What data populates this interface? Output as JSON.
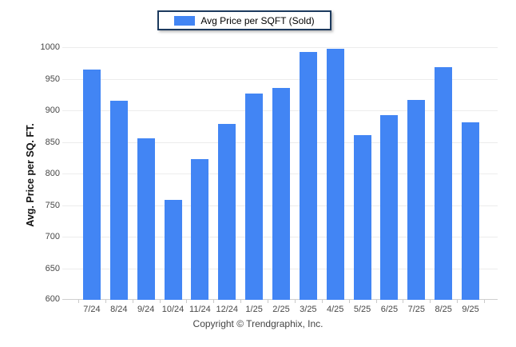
{
  "legend": {
    "label": "Avg Price per SQFT (Sold)",
    "swatch_color": "#4285f4"
  },
  "chart_data": {
    "type": "bar",
    "title": "",
    "categories": [
      "7/24",
      "8/24",
      "9/24",
      "10/24",
      "11/24",
      "12/24",
      "1/25",
      "2/25",
      "3/25",
      "4/25",
      "5/25",
      "6/25",
      "7/25",
      "8/25",
      "9/25"
    ],
    "series": [
      {
        "name": "Avg Price per SQFT (Sold)",
        "values": [
          964,
          915,
          856,
          758,
          823,
          878,
          927,
          935,
          992,
          997,
          861,
          892,
          916,
          968,
          881
        ]
      }
    ],
    "xlabel": "",
    "ylabel": "Avg. Price per SQ. FT.",
    "ylim": [
      600,
      1000
    ],
    "yticks": [
      600,
      650,
      700,
      750,
      800,
      850,
      900,
      950,
      1000
    ],
    "grid": true,
    "legend_position": "top-center",
    "bar_color": "#4285f4",
    "gridline_color": "#ececec",
    "axis_text_color": "#474747"
  },
  "footer": {
    "copyright": "Copyright © Trendgraphix, Inc."
  }
}
